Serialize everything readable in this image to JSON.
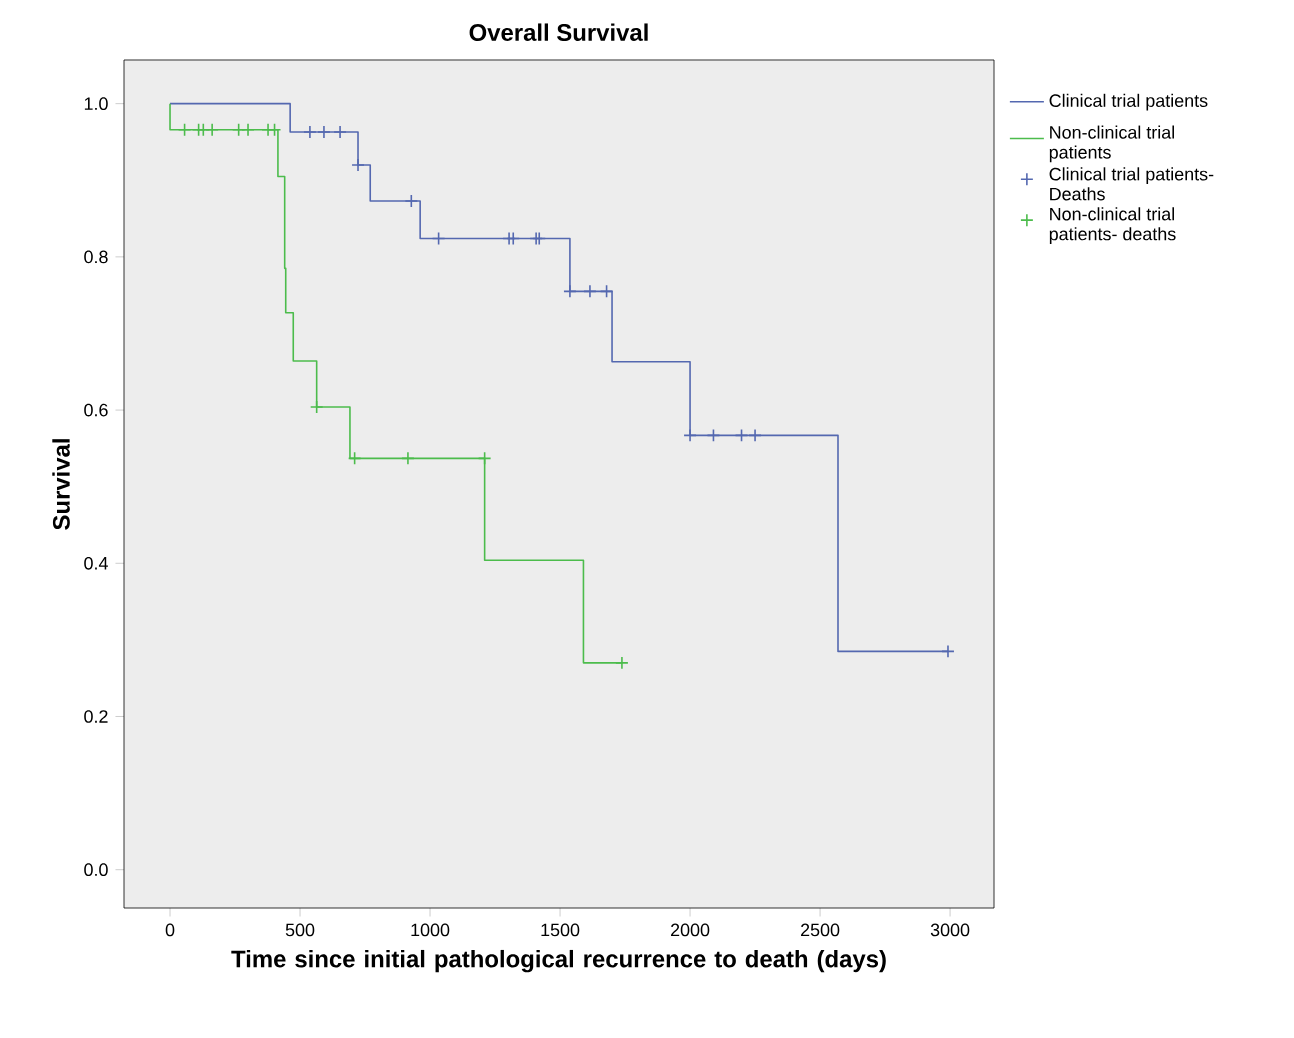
{
  "chart_data": {
    "type": "step",
    "title": "Overall Survival",
    "xlabel": "Time since initial pathological recurrence to death (days)",
    "ylabel": "Survival",
    "xlim": [
      -177,
      3169
    ],
    "ylim": [
      -0.05,
      1.057
    ],
    "xticks": [
      0,
      500,
      1000,
      1500,
      2000,
      2500,
      3000
    ],
    "yticks": [
      {
        "value": 0,
        "label": "0.0"
      },
      {
        "value": 0.2,
        "label": "0.2"
      },
      {
        "value": 0.4,
        "label": "0.4"
      },
      {
        "value": 0.6,
        "label": "0.6"
      },
      {
        "value": 0.8,
        "label": "0.8"
      },
      {
        "value": 1,
        "label": "1.0"
      }
    ],
    "grid": false,
    "legend": "right",
    "line_style": "solid",
    "series": [
      {
        "name": "Clinical trial patients",
        "color": "#5468b0",
        "x": [
          0,
          462,
          723,
          770,
          962,
          1538,
          1700,
          2000,
          2569,
          2992
        ],
        "values": [
          1,
          0.963,
          0.92,
          0.873,
          0.824,
          0.755,
          0.663,
          0.567,
          0.285,
          0.285
        ]
      },
      {
        "name": "Non-clinical trial patients",
        "color": "#4cbc4c",
        "x": [
          0,
          0,
          415,
          441,
          445,
          474,
          564,
          692,
          1210,
          1590,
          1738
        ],
        "values": [
          1,
          0.966,
          0.905,
          0.785,
          0.727,
          0.664,
          0.604,
          0.537,
          0.404,
          0.27,
          0.27
        ]
      },
      {
        "name": "Clinical trial patients- Deaths",
        "type": "scatter",
        "marker": "cross",
        "color": "#5468b0",
        "x": [
          538,
          592,
          654,
          723,
          928,
          1033,
          1304,
          1320,
          1408,
          1420,
          1538,
          1615,
          1679,
          2000,
          2090,
          2198,
          2250,
          2992
        ],
        "values": [
          0.963,
          0.963,
          0.963,
          0.92,
          0.873,
          0.824,
          0.824,
          0.824,
          0.824,
          0.824,
          0.755,
          0.755,
          0.755,
          0.567,
          0.567,
          0.567,
          0.567,
          0.285
        ]
      },
      {
        "name": "Non-clinical trial patients- deaths",
        "type": "scatter",
        "marker": "cross",
        "color": "#4cbc4c",
        "x": [
          56,
          110,
          128,
          162,
          264,
          300,
          377,
          392,
          402,
          564,
          710,
          915,
          1210,
          1738
        ],
        "values": [
          0.966,
          0.966,
          0.966,
          0.966,
          0.966,
          0.966,
          0.966,
          null,
          0.966,
          0.604,
          0.537,
          0.537,
          0.537,
          0.27
        ]
      }
    ]
  }
}
